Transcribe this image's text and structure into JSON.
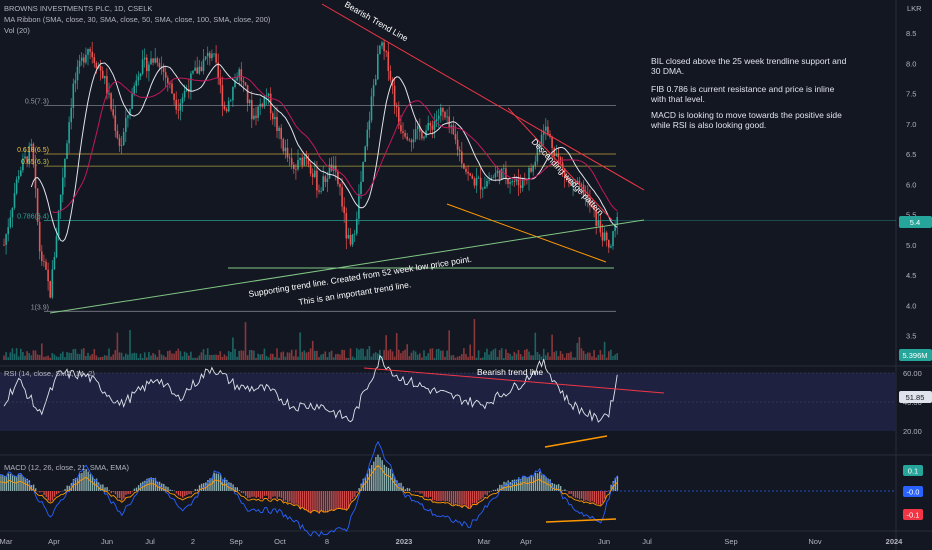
{
  "header": {
    "symbol_line": "BROWNS INVESTMENTS PLC, 1D, CSELK",
    "ma_line": "MA Ribbon (SMA, close, 30, SMA, close, 50, SMA, close, 100, SMA, close, 200)",
    "vol_line": "Vol (20)",
    "currency": "LKR"
  },
  "notes": [
    "BIL closed above the 25 week trendline support and 30 DMA.",
    "FIB 0.786 is current resistance and price is inline with that level.",
    "MACD is looking to move towards the positive side while RSI is also looking good."
  ],
  "annotations": {
    "bearish_main": "Bearish Trend Line",
    "wedge": "Descending wedge pattern",
    "support_1": "Supporting trend line. Created from 52 week low price point.",
    "support_2": "This is an important trend line.",
    "rsi_bearish": "Bearish trend line"
  },
  "fib_labels": [
    "0.5(7.3)",
    "0.618(6.5)",
    "0.65(6.3)",
    "0.786(5.4)",
    "1(3.9)"
  ],
  "fib_colors": [
    "#9598a1",
    "#f0c040",
    "#c8c040",
    "#26a69a",
    "#9598a1"
  ],
  "colors": {
    "up": "#26a69a",
    "down": "#ef5350",
    "ma_white": "#e0e3eb",
    "ma_red": "#c2185b",
    "trend_red": "#f23645",
    "trend_green": "#81c784",
    "orange": "#ff9800",
    "macd_blue": "#2962ff"
  },
  "chart_data": [
    {
      "type": "candlestick",
      "title": "BROWNS INVESTMENTS PLC, 1D, CSELK",
      "ylabel": "LKR",
      "ylim": [
        3.0,
        8.9
      ],
      "y_ticks": [
        "8.5",
        "8.0",
        "7.5",
        "7.0",
        "6.5",
        "6.0",
        "5.5",
        "5.0",
        "4.5",
        "4.0",
        "3.5"
      ],
      "x_ticks": [
        "Mar",
        "Apr",
        "Jun",
        "Jul",
        "2",
        "Sep",
        "Oct",
        "8",
        "2023",
        "Mar",
        "Apr",
        "Jun",
        "Jul",
        "Sep",
        "Nov",
        "2024"
      ],
      "last_price": "5.4",
      "last_volume": "5.396M",
      "close_path": [
        [
          "2022-03-01",
          5.0
        ],
        [
          "2022-03-12",
          6.2
        ],
        [
          "2022-03-22",
          6.6
        ],
        [
          "2022-03-28",
          4.9
        ],
        [
          "2022-04-05",
          4.2
        ],
        [
          "2022-04-12",
          5.7
        ],
        [
          "2022-04-22",
          7.6
        ],
        [
          "2022-05-03",
          8.3
        ],
        [
          "2022-05-15",
          7.8
        ],
        [
          "2022-05-28",
          6.6
        ],
        [
          "2022-06-10",
          7.9
        ],
        [
          "2022-06-25",
          8.1
        ],
        [
          "2022-07-10",
          7.3
        ],
        [
          "2022-07-22",
          7.8
        ],
        [
          "2022-08-05",
          8.2
        ],
        [
          "2022-08-15",
          7.2
        ],
        [
          "2022-08-25",
          7.9
        ],
        [
          "2022-09-05",
          7.1
        ],
        [
          "2022-09-15",
          7.5
        ],
        [
          "2022-09-25",
          6.8
        ],
        [
          "2022-10-05",
          6.2
        ],
        [
          "2022-10-15",
          6.5
        ],
        [
          "2022-10-25",
          5.9
        ],
        [
          "2022-11-03",
          6.3
        ],
        [
          "2022-11-10",
          5.9
        ],
        [
          "2022-11-14",
          5.2
        ],
        [
          "2022-11-18",
          4.9
        ],
        [
          "2022-11-26",
          6.1
        ],
        [
          "2022-12-04",
          7.5
        ],
        [
          "2022-12-10",
          8.3
        ],
        [
          "2022-12-16",
          8.0
        ],
        [
          "2022-12-24",
          7.0
        ],
        [
          "2023-01-02",
          6.8
        ],
        [
          "2023-01-15",
          6.9
        ],
        [
          "2023-01-25",
          7.2
        ],
        [
          "2023-02-05",
          6.7
        ],
        [
          "2023-02-15",
          6.1
        ],
        [
          "2023-02-25",
          6.0
        ],
        [
          "2023-03-10",
          6.2
        ],
        [
          "2023-03-25",
          6.0
        ],
        [
          "2023-04-05",
          6.3
        ],
        [
          "2023-04-12",
          7.0
        ],
        [
          "2023-04-20",
          6.6
        ],
        [
          "2023-05-01",
          6.0
        ],
        [
          "2023-05-12",
          5.9
        ],
        [
          "2023-05-22",
          5.4
        ],
        [
          "2023-06-01",
          4.9
        ],
        [
          "2023-06-07",
          5.4
        ]
      ]
    },
    {
      "type": "line",
      "title": "RSI (14, close, SMA, 14, 2)",
      "ylim": [
        15,
        75
      ],
      "y_ticks": [
        "60.00",
        "40.00",
        "20.00"
      ],
      "last_value": "51.85",
      "values": [
        [
          "2022-03-01",
          40
        ],
        [
          "2022-03-12",
          55
        ],
        [
          "2022-03-28",
          32
        ],
        [
          "2022-04-12",
          60
        ],
        [
          "2022-05-03",
          58
        ],
        [
          "2022-05-28",
          38
        ],
        [
          "2022-06-25",
          57
        ],
        [
          "2022-07-10",
          42
        ],
        [
          "2022-08-05",
          64
        ],
        [
          "2022-08-25",
          50
        ],
        [
          "2022-09-15",
          49
        ],
        [
          "2022-10-05",
          37
        ],
        [
          "2022-10-25",
          38
        ],
        [
          "2022-11-18",
          27
        ],
        [
          "2022-12-10",
          70
        ],
        [
          "2022-12-24",
          57
        ],
        [
          "2023-01-15",
          49
        ],
        [
          "2023-02-05",
          43
        ],
        [
          "2023-02-25",
          38
        ],
        [
          "2023-03-25",
          52
        ],
        [
          "2023-04-12",
          67
        ],
        [
          "2023-05-01",
          40
        ],
        [
          "2023-05-22",
          28
        ],
        [
          "2023-06-01",
          33
        ],
        [
          "2023-06-07",
          58
        ]
      ]
    },
    {
      "type": "bar",
      "title": "MACD (12, 26, close, 21, SMA, EMA)",
      "y_ticks": [
        "0.1",
        "-0.0",
        "-0.1"
      ],
      "values": [
        [
          "2022-03-15",
          0.09
        ],
        [
          "2022-04-05",
          -0.06
        ],
        [
          "2022-05-01",
          0.12
        ],
        [
          "2022-05-28",
          -0.05
        ],
        [
          "2022-06-20",
          0.08
        ],
        [
          "2022-07-15",
          -0.04
        ],
        [
          "2022-08-08",
          0.1
        ],
        [
          "2022-09-01",
          -0.03
        ],
        [
          "2022-09-25",
          -0.04
        ],
        [
          "2022-10-20",
          -0.12
        ],
        [
          "2022-11-15",
          -0.1
        ],
        [
          "2022-12-08",
          0.2
        ],
        [
          "2022-12-28",
          0.02
        ],
        [
          "2023-01-20",
          -0.05
        ],
        [
          "2023-02-15",
          -0.09
        ],
        [
          "2023-03-15",
          0.05
        ],
        [
          "2023-04-10",
          0.1
        ],
        [
          "2023-05-05",
          -0.03
        ],
        [
          "2023-05-25",
          -0.08
        ],
        [
          "2023-06-07",
          0.09
        ]
      ]
    }
  ]
}
